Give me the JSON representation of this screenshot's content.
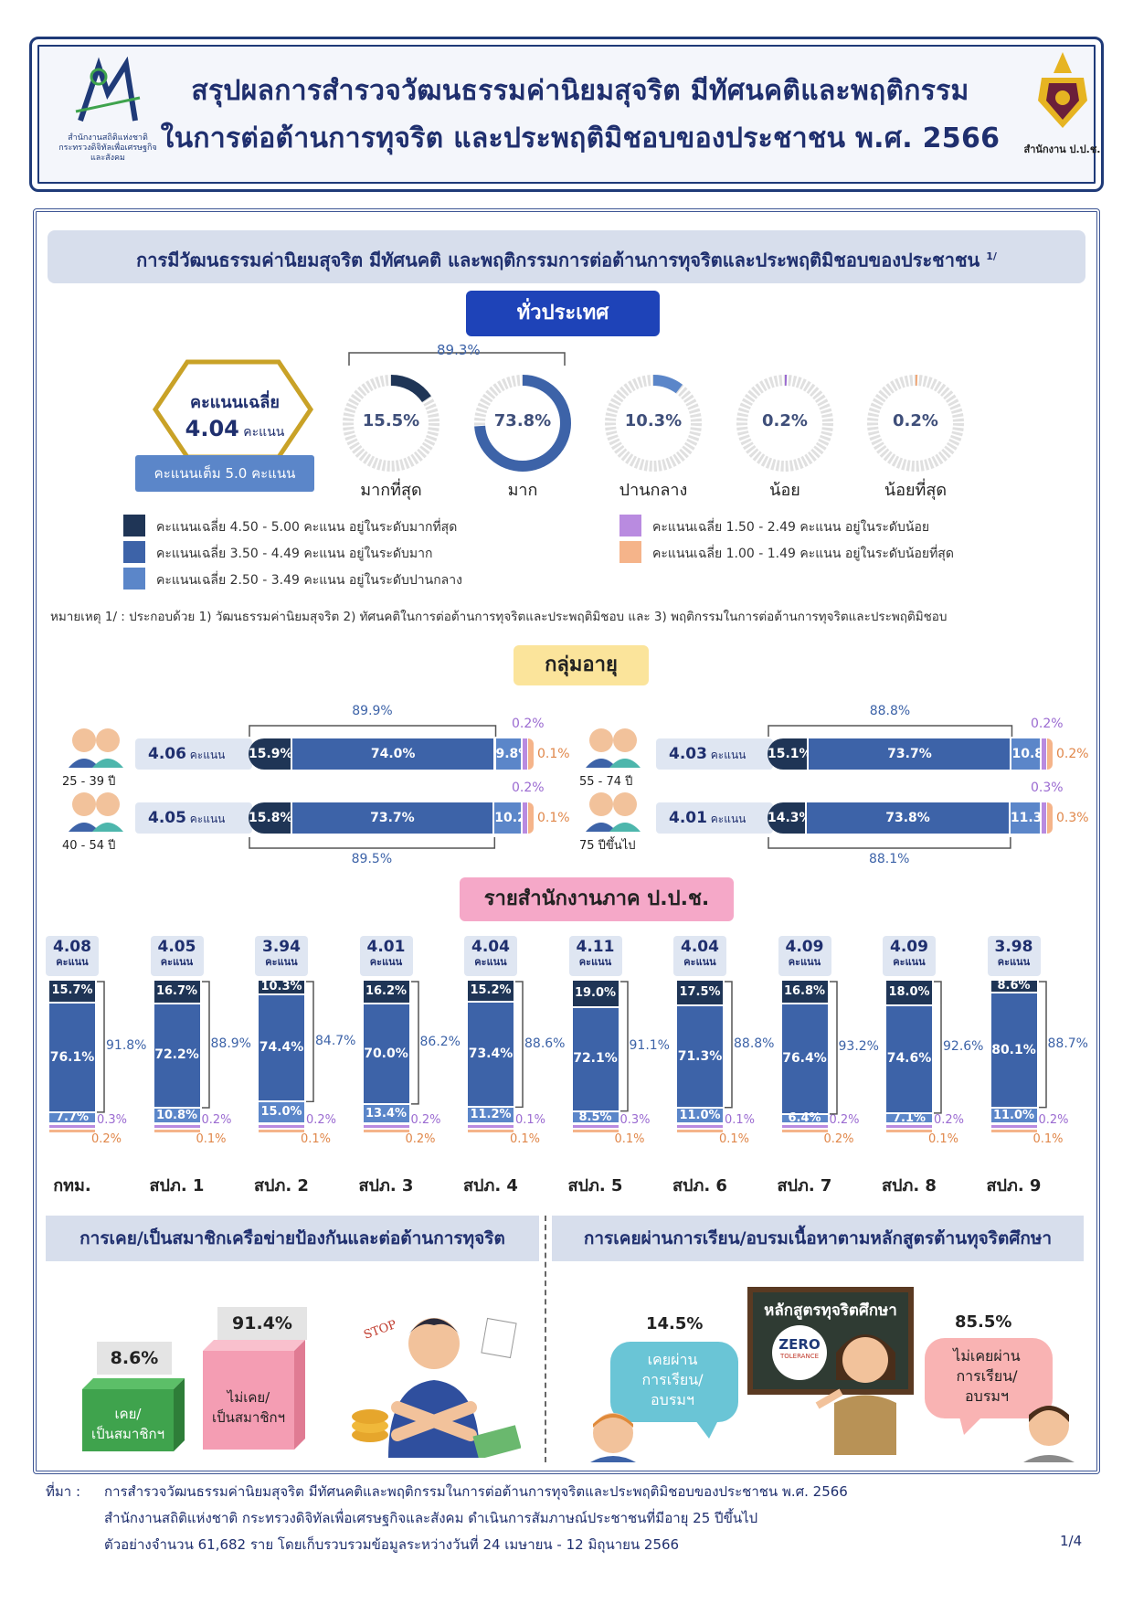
{
  "header": {
    "title_line1": "สรุปผลการสำรวจวัฒนธรรมค่านิยมสุจริต มีทัศนคติและพฤติกรรม",
    "title_line2": "ในการต่อต้านการทุจริต และประพฤติมิชอบของประชาชน พ.ศ. 2566",
    "left_logo_caption1": "สำนักงานสถิติแห่งชาติ",
    "left_logo_caption2": "กระทรวงดิจิทัลเพื่อเศรษฐกิจและสังคม",
    "right_logo_caption": "สำนักงาน ป.ป.ช."
  },
  "section_title": "การมีวัฒนธรรมค่านิยมสุจริต มีทัศนคติ และพฤติกรรมการต่อต้านการทุจริตและประพฤติมิชอบของประชาชน",
  "section_footnote_mark": "1/",
  "national": {
    "pill": "ทั่วประเทศ",
    "avg_label": "คะแนนเฉลี่ย",
    "avg_value": "4.04",
    "avg_unit": "คะแนน",
    "full_score": "คะแนนเต็ม 5.0 คะแนน",
    "combined_pct": "89.3%",
    "donuts": [
      {
        "value": 15.5,
        "text": "15.5%",
        "label": "มากที่สุด",
        "color": "#1f3556"
      },
      {
        "value": 73.8,
        "text": "73.8%",
        "label": "มาก",
        "color": "#3d63a8"
      },
      {
        "value": 10.3,
        "text": "10.3%",
        "label": "ปานกลาง",
        "color": "#5b86c9"
      },
      {
        "value": 0.2,
        "text": "0.2%",
        "label": "น้อย",
        "color": "#9b6bd1"
      },
      {
        "value": 0.2,
        "text": "0.2%",
        "label": "น้อยที่สุด",
        "color": "#f0a878"
      }
    ]
  },
  "legend": [
    {
      "color": "#1f3556",
      "text": "คะแนนเฉลี่ย 4.50 - 5.00 คะแนน   อยู่ในระดับมากที่สุด"
    },
    {
      "color": "#3d63a8",
      "text": "คะแนนเฉลี่ย 3.50 - 4.49 คะแนน   อยู่ในระดับมาก"
    },
    {
      "color": "#5b86c9",
      "text": "คะแนนเฉลี่ย 2.50 - 3.49 คะแนน   อยู่ในระดับปานกลาง"
    },
    {
      "color": "#b98be0",
      "text": "คะแนนเฉลี่ย 1.50 - 2.49 คะแนน  อยู่ในระดับน้อย"
    },
    {
      "color": "#f5b48a",
      "text": "คะแนนเฉลี่ย 1.00 - 1.49 คะแนน  อยู่ในระดับน้อยที่สุด"
    }
  ],
  "note": "หมายเหตุ 1/ : ประกอบด้วย 1) วัฒนธรรมค่านิยมสุจริต  2) ทัศนคติในการต่อต้านการทุจริตและประพฤติมิชอบ และ 3) พฤติกรรมในการต่อต้านการทุจริตและประพฤติมิชอบ",
  "age": {
    "pill": "กลุ่มอายุ",
    "unit": "คะแนน",
    "groups": [
      {
        "label": "25 - 39 ปี",
        "score": "4.06",
        "segs": [
          "15.9%",
          "74.0%",
          "9.8%"
        ],
        "vals": [
          15.9,
          74.0,
          9.8
        ],
        "low": "0.2%",
        "lowest": "0.1%",
        "combined": "89.9%"
      },
      {
        "label": "40 - 54 ปี",
        "score": "4.05",
        "segs": [
          "15.8%",
          "73.7%",
          "10.2%"
        ],
        "vals": [
          15.8,
          73.7,
          10.2
        ],
        "low": "0.2%",
        "lowest": "0.1%",
        "combined": "89.5%"
      },
      {
        "label": "55 - 74 ปี",
        "score": "4.03",
        "segs": [
          "15.1%",
          "73.7%",
          "10.8%"
        ],
        "vals": [
          15.1,
          73.7,
          10.8
        ],
        "low": "0.2%",
        "lowest": "0.2%",
        "combined": "88.8%"
      },
      {
        "label": "75 ปีขึ้นไป",
        "score": "4.01",
        "segs": [
          "14.3%",
          "73.8%",
          "11.3%"
        ],
        "vals": [
          14.3,
          73.8,
          11.3
        ],
        "low": "0.3%",
        "lowest": "0.3%",
        "combined": "88.1%"
      }
    ]
  },
  "regions": {
    "pill": "รายสำนักงานภาค ป.ป.ช.",
    "unit": "คะแนน",
    "items": [
      {
        "name": "กทม.",
        "score": "4.08",
        "top": "15.7%",
        "mid": "76.1%",
        "bot": "7.7%",
        "vals": [
          15.7,
          76.1,
          7.7
        ],
        "low": "0.3%",
        "lowest": "0.2%",
        "combined": "91.8%"
      },
      {
        "name": "สปภ. 1",
        "score": "4.05",
        "top": "16.7%",
        "mid": "72.2%",
        "bot": "10.8%",
        "vals": [
          16.7,
          72.2,
          10.8
        ],
        "low": "0.2%",
        "lowest": "0.1%",
        "combined": "88.9%"
      },
      {
        "name": "สปภ. 2",
        "score": "3.94",
        "top": "10.3%",
        "mid": "74.4%",
        "bot": "15.0%",
        "vals": [
          10.3,
          74.4,
          15.0
        ],
        "low": "0.2%",
        "lowest": "0.1%",
        "combined": "84.7%"
      },
      {
        "name": "สปภ. 3",
        "score": "4.01",
        "top": "16.2%",
        "mid": "70.0%",
        "bot": "13.4%",
        "vals": [
          16.2,
          70.0,
          13.4
        ],
        "low": "0.2%",
        "lowest": "0.2%",
        "combined": "86.2%"
      },
      {
        "name": "สปภ. 4",
        "score": "4.04",
        "top": "15.2%",
        "mid": "73.4%",
        "bot": "11.2%",
        "vals": [
          15.2,
          73.4,
          11.2
        ],
        "low": "0.1%",
        "lowest": "0.1%",
        "combined": "88.6%"
      },
      {
        "name": "สปภ. 5",
        "score": "4.11",
        "top": "19.0%",
        "mid": "72.1%",
        "bot": "8.5%",
        "vals": [
          19.0,
          72.1,
          8.5
        ],
        "low": "0.3%",
        "lowest": "0.1%",
        "combined": "91.1%"
      },
      {
        "name": "สปภ. 6",
        "score": "4.04",
        "top": "17.5%",
        "mid": "71.3%",
        "bot": "11.0%",
        "vals": [
          17.5,
          71.3,
          11.0
        ],
        "low": "0.1%",
        "lowest": "0.1%",
        "combined": "88.8%"
      },
      {
        "name": "สปภ. 7",
        "score": "4.09",
        "top": "16.8%",
        "mid": "76.4%",
        "bot": "6.4%",
        "vals": [
          16.8,
          76.4,
          6.4
        ],
        "low": "0.2%",
        "lowest": "0.2%",
        "combined": "93.2%"
      },
      {
        "name": "สปภ. 8",
        "score": "4.09",
        "top": "18.0%",
        "mid": "74.6%",
        "bot": "7.1%",
        "vals": [
          18.0,
          74.6,
          7.1
        ],
        "low": "0.2%",
        "lowest": "0.1%",
        "combined": "92.6%"
      },
      {
        "name": "สปภ. 9",
        "score": "3.98",
        "top": "8.6%",
        "mid": "80.1%",
        "bot": "11.0%",
        "vals": [
          8.6,
          80.1,
          11.0
        ],
        "low": "0.2%",
        "lowest": "0.1%",
        "combined": "88.7%"
      }
    ]
  },
  "network": {
    "title": "การเคย/เป็นสมาชิกเครือข่ายป้องกันและต่อต้านการทุจริต",
    "yes_pct": "8.6%",
    "yes_label_1": "เคย/",
    "yes_label_2": "เป็นสมาชิกฯ",
    "no_pct": "91.4%",
    "no_label_1": "ไม่เคย/",
    "no_label_2": "เป็นสมาชิกฯ",
    "yes_color": "#3fa34d",
    "no_color": "#f49db3",
    "stop_sign": "STOP"
  },
  "training": {
    "title": "การเคยผ่านการเรียน/อบรมเนื้อหาตามหลักสูตรต้านทุจริตศึกษา",
    "board": "หลักสูตรทุจริตศึกษา",
    "board_logo": "ZERO",
    "board_logo_sub": "TOLERANCE",
    "yes_pct": "14.5%",
    "yes_1": "เคยผ่าน",
    "yes_2": "การเรียน/",
    "yes_3": "อบรมฯ",
    "no_pct": "85.5%",
    "no_1": "ไม่เคยผ่าน",
    "no_2": "การเรียน/",
    "no_3": "อบรมฯ"
  },
  "footer": {
    "src_label": "ที่มา  :",
    "line1": "การสำรวจวัฒนธรรมค่านิยมสุจริต มีทัศนคติและพฤติกรรมในการต่อต้านการทุจริตและประพฤติมิชอบของประชาชน พ.ศ. 2566",
    "line2": "สำนักงานสถิติแห่งชาติ  กระทรวงดิจิทัลเพื่อเศรษฐกิจและสังคม  ดำเนินการสัมภาษณ์ประชาชนที่มีอายุ 25 ปีขึ้นไป",
    "line3": "ตัวอย่างจำนวน 61,682 ราย  โดยเก็บรวบรวมข้อมูลระหว่างวันที่  24 เมษายน - 12 มิถุนายน 2566",
    "page": "1/4"
  }
}
